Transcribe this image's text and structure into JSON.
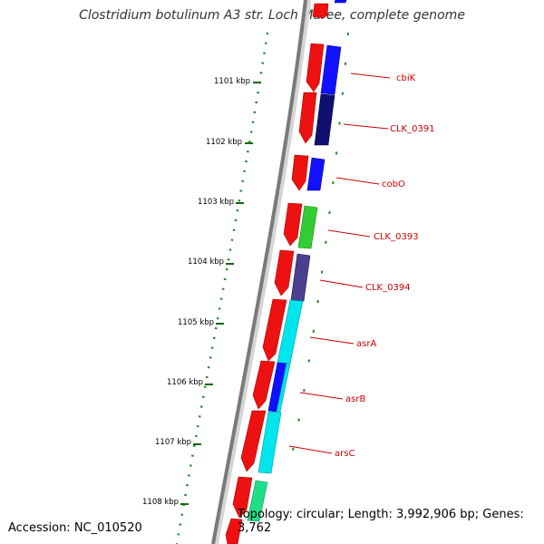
{
  "title": "Clostridium botulinum A3 str. Loch Maree, complete genome",
  "footer": {
    "accession": "Accession: NC_010520",
    "topology": "Topology: circular; Length: 3,992,906 bp; Genes: 3,762"
  },
  "ticks": [
    "1101 kbp",
    "1102 kbp",
    "1103 kbp",
    "1104 kbp",
    "1105 kbp",
    "1106 kbp",
    "1107 kbp",
    "1108 kbp"
  ],
  "genes": [
    "cbiK",
    "CLK_0391",
    "cobO",
    "CLK_0393",
    "CLK_0394",
    "asrA",
    "asrB",
    "arsC"
  ],
  "colors": {
    "forward_strand": "#ee1111",
    "cbiK": "#1111ff",
    "CLK_0391": "#101070",
    "cobO": "#1111ff",
    "CLK_0393": "#33cc33",
    "CLK_0394": "#4a3f90",
    "asrA": "#00e5ee",
    "asrB": "#1111ff",
    "arsC": "#00e5ee",
    "next_gene": "#22dd88",
    "label": "#cc0000",
    "dotted_track": "#228822"
  }
}
